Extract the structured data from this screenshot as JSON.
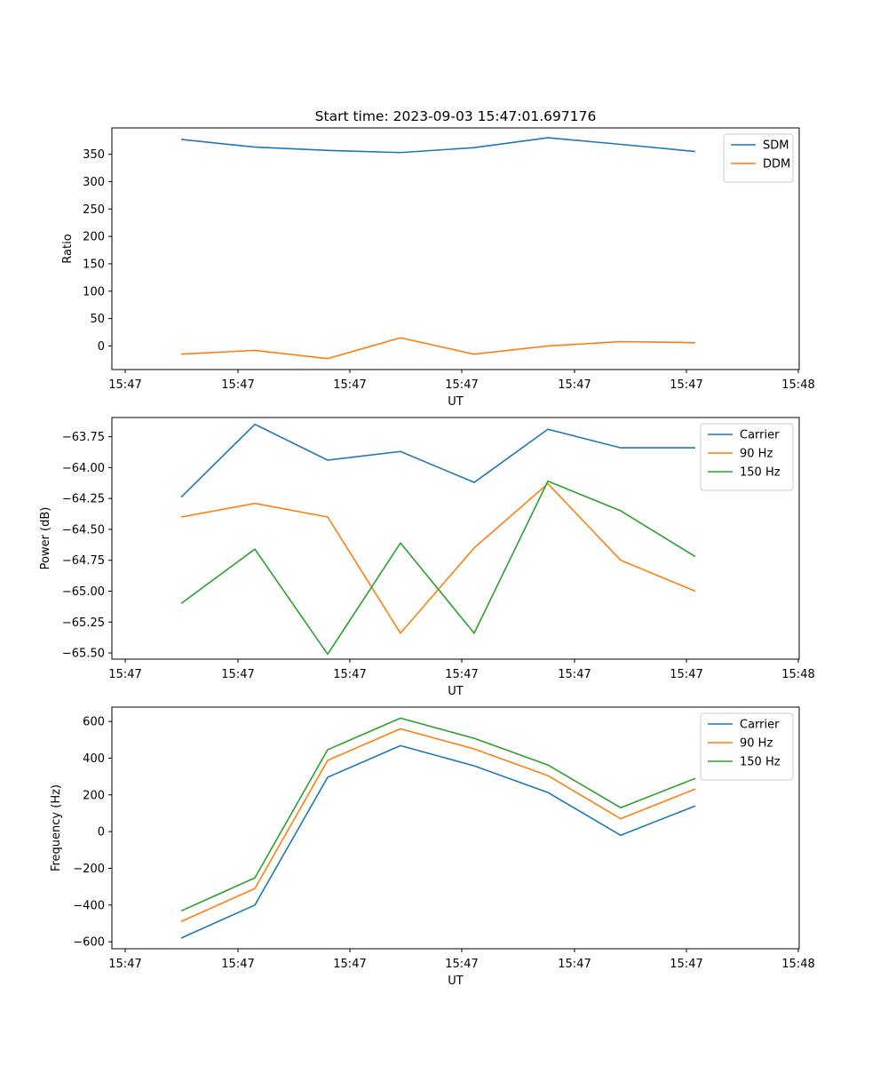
{
  "title": "Start time: 2023-09-03 15:47:01.697176",
  "chart_data": [
    {
      "type": "line",
      "xlabel": "UT",
      "ylabel": "Ratio",
      "xtick_labels": [
        "15:47",
        "15:47",
        "15:47",
        "15:47",
        "15:47",
        "15:47",
        "15:47"
      ],
      "xtick_last": "15:48",
      "ylim": [
        -43,
        398
      ],
      "yticks": [
        0,
        50,
        100,
        150,
        200,
        250,
        300,
        350
      ],
      "ytick_labels": [
        "0",
        "50",
        "100",
        "150",
        "200",
        "250",
        "300",
        "350"
      ],
      "legend_position": "top-right",
      "series": [
        {
          "name": "SDM",
          "color": "#1f77b4",
          "values": [
            377,
            363,
            357,
            353,
            362,
            380,
            368,
            355
          ]
        },
        {
          "name": "DDM",
          "color": "#ff7f0e",
          "values": [
            -15,
            -8,
            -23,
            15,
            -15,
            0,
            8,
            6
          ]
        }
      ]
    },
    {
      "type": "line",
      "xlabel": "UT",
      "ylabel": "Power (dB)",
      "xtick_labels": [
        "15:47",
        "15:47",
        "15:47",
        "15:47",
        "15:47",
        "15:47",
        "15:47"
      ],
      "xtick_last": "15:48",
      "ylim": [
        -65.55,
        -63.595
      ],
      "yticks": [
        -65.5,
        -65.25,
        -65.0,
        -64.75,
        -64.5,
        -64.25,
        -64.0,
        -63.75
      ],
      "ytick_labels": [
        "−65.50",
        "−65.25",
        "−65.00",
        "−64.75",
        "−64.50",
        "−64.25",
        "−64.00",
        "−63.75"
      ],
      "legend_position": "top-right",
      "series": [
        {
          "name": "Carrier",
          "color": "#1f77b4",
          "values": [
            -64.24,
            -63.65,
            -63.94,
            -63.87,
            -64.12,
            -63.69,
            -63.84,
            -63.84
          ]
        },
        {
          "name": "90 Hz",
          "color": "#ff7f0e",
          "values": [
            -64.4,
            -64.29,
            -64.4,
            -65.34,
            -64.65,
            -64.13,
            -64.75,
            -65.0
          ]
        },
        {
          "name": "150 Hz",
          "color": "#2ca02c",
          "values": [
            -65.1,
            -64.66,
            -65.51,
            -64.61,
            -65.34,
            -64.11,
            -64.35,
            -64.72
          ]
        }
      ]
    },
    {
      "type": "line",
      "xlabel": "UT",
      "ylabel": "Frequency (Hz)",
      "xtick_labels": [
        "15:47",
        "15:47",
        "15:47",
        "15:47",
        "15:47",
        "15:47",
        "15:47"
      ],
      "xtick_last": "15:48",
      "ylim": [
        -638,
        678
      ],
      "yticks": [
        -600,
        -400,
        -200,
        0,
        200,
        400,
        600
      ],
      "ytick_labels": [
        "−600",
        "−400",
        "−200",
        "0",
        "200",
        "400",
        "600"
      ],
      "legend_position": "top-right",
      "series": [
        {
          "name": "Carrier",
          "color": "#1f77b4",
          "values": [
            -580,
            -400,
            296,
            468,
            358,
            213,
            -20,
            140
          ]
        },
        {
          "name": "90 Hz",
          "color": "#ff7f0e",
          "values": [
            -490,
            -310,
            388,
            560,
            450,
            305,
            70,
            232
          ]
        },
        {
          "name": "150 Hz",
          "color": "#2ca02c",
          "values": [
            -432,
            -252,
            446,
            618,
            508,
            363,
            130,
            290
          ]
        }
      ]
    }
  ]
}
